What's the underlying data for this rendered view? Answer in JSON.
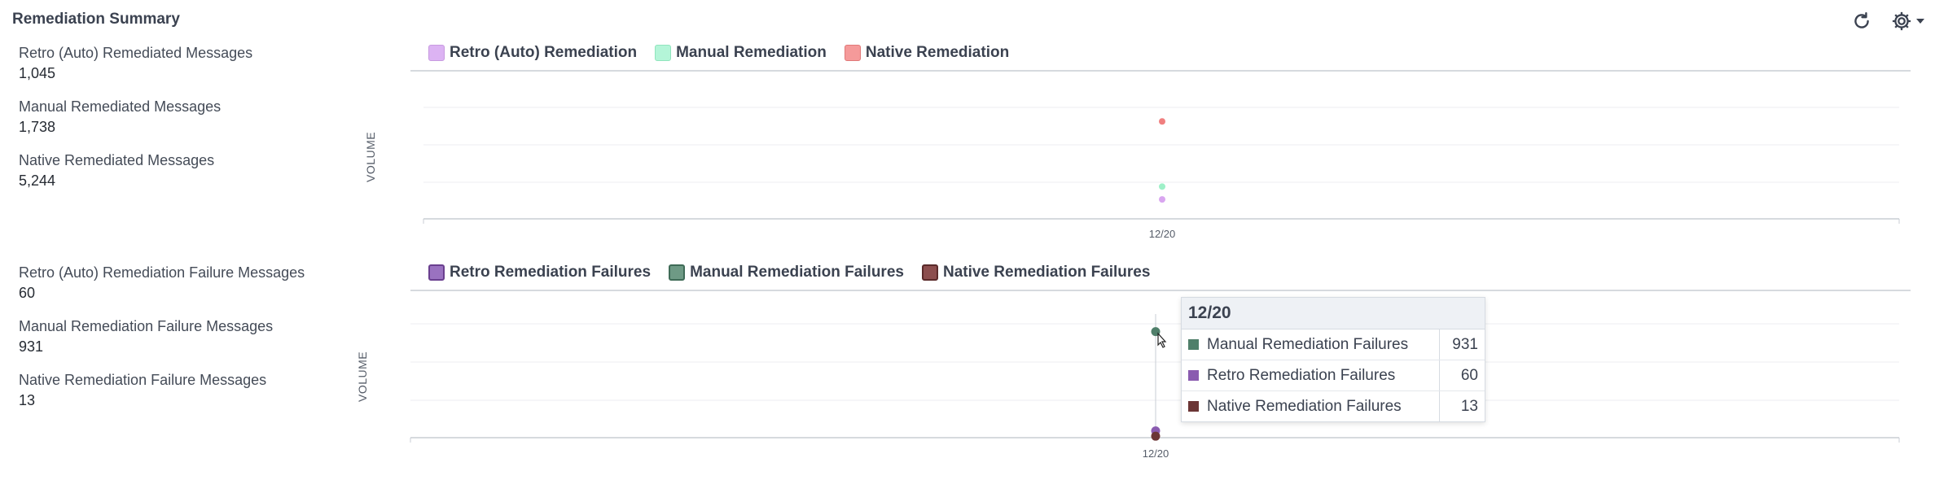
{
  "title": "Remediation Summary",
  "toolbar": {
    "refresh_icon": "refresh-icon",
    "settings_icon": "gear-icon"
  },
  "stats": [
    {
      "label": "Retro (Auto) Remediated Messages",
      "value": "1,045"
    },
    {
      "label": "Manual Remediated Messages",
      "value": "1,738"
    },
    {
      "label": "Native Remediated Messages",
      "value": "5,244"
    },
    {
      "label": "Retro (Auto) Remediation Failure Messages",
      "value": "60"
    },
    {
      "label": "Manual Remediation Failure Messages",
      "value": "931"
    },
    {
      "label": "Native Remediation Failure Messages",
      "value": "13"
    }
  ],
  "tooltip": {
    "date": "12/20",
    "rows": [
      {
        "name": "Manual Remediation Failures",
        "value": "931",
        "color": "#4f7f6a"
      },
      {
        "name": "Retro Remediation Failures",
        "value": "60",
        "color": "#8a5bb0"
      },
      {
        "name": "Native Remediation Failures",
        "value": "13",
        "color": "#6b3535"
      }
    ]
  },
  "chart_data": [
    {
      "type": "scatter",
      "ylabel": "VOLUME",
      "categories": [
        "12/20"
      ],
      "series": [
        {
          "name": "Retro (Auto) Remediation",
          "color": "#d9a6f0",
          "values": [
            1045
          ]
        },
        {
          "name": "Manual Remediation",
          "color": "#9ef0c8",
          "values": [
            1738
          ]
        },
        {
          "name": "Native Remediation",
          "color": "#f07f7f",
          "values": [
            5244
          ]
        }
      ],
      "ylim": [
        0,
        6000
      ],
      "grid": true,
      "legend": "top-left"
    },
    {
      "type": "scatter",
      "ylabel": "VOLUME",
      "categories": [
        "12/20"
      ],
      "series": [
        {
          "name": "Retro Remediation Failures",
          "color": "#8a5bb0",
          "values": [
            60
          ]
        },
        {
          "name": "Manual Remediation Failures",
          "color": "#4f7f6a",
          "values": [
            931
          ]
        },
        {
          "name": "Native Remediation Failures",
          "color": "#6b3535",
          "values": [
            13
          ]
        }
      ],
      "ylim": [
        0,
        1000
      ],
      "grid": true,
      "legend": "top-left"
    }
  ]
}
